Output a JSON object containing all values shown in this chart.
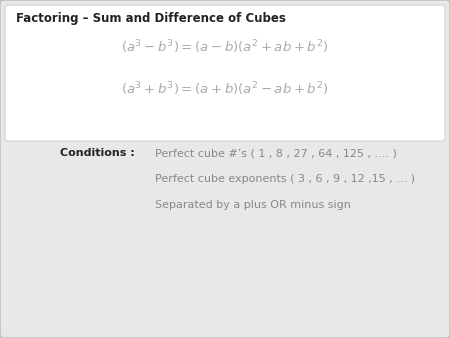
{
  "title": "Factoring – Sum and Difference of Cubes",
  "bg_color": "#e8e8e8",
  "header_bg": "#ffffff",
  "conditions_label": "Conditions :",
  "condition1": "Perfect cube #’s ( 1 , 8 , 27 , 64 , 125 , .... )",
  "condition2": "Perfect cube exponents ( 3 , 6 , 9 , 12 ,15 , ... )",
  "condition3": "Separated by a plus OR minus sign",
  "title_fontsize": 8.5,
  "formula_fontsize": 9.5,
  "conditions_fontsize": 8.0,
  "formula_color": "#aaaaaa",
  "conditions_text_color": "#888888",
  "bold_color": "#222222"
}
